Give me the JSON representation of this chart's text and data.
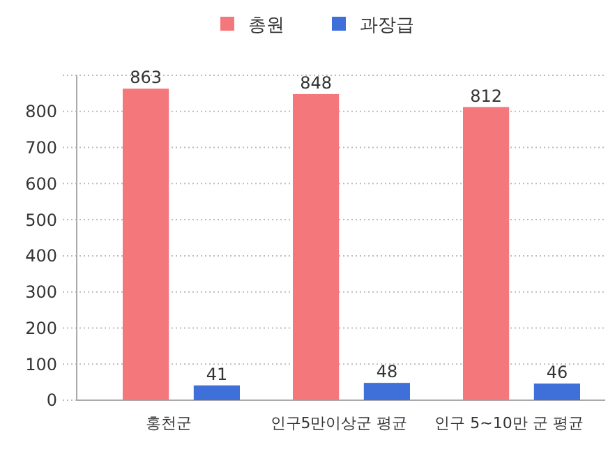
{
  "chart_data": {
    "type": "bar",
    "categories": [
      "홍천군",
      "인구5만이상군 평균",
      "인구 5~10만 군 평균"
    ],
    "series": [
      {
        "name": "총원",
        "color": "#f4777b",
        "values": [
          863,
          848,
          812
        ]
      },
      {
        "name": "과장급",
        "color": "#3f6fd8",
        "values": [
          41,
          48,
          46
        ]
      }
    ],
    "ylim": [
      0,
      900
    ],
    "yticks": [
      0,
      100,
      200,
      300,
      400,
      500,
      600,
      700,
      800,
      {
        "value": 900,
        "label": null
      }
    ],
    "grid": "y",
    "legend": "top",
    "data_labels": true
  }
}
